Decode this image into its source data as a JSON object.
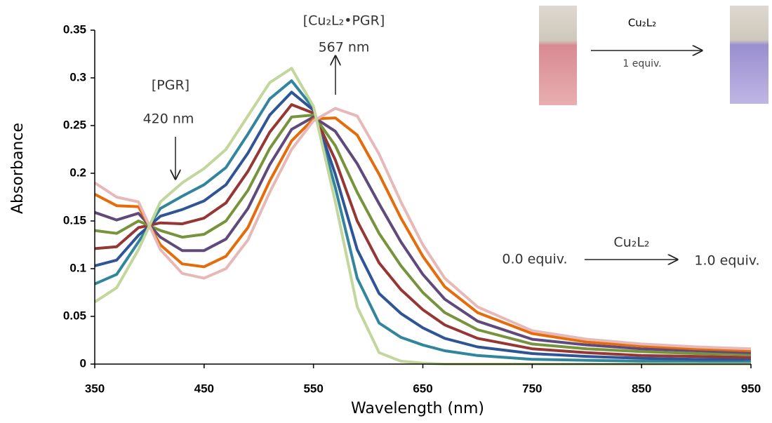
{
  "chart_data": {
    "type": "line",
    "x_label": "Wavelength (nm)",
    "y_label": "Absorbance",
    "x": [
      350,
      370,
      390,
      410,
      430,
      450,
      470,
      490,
      510,
      530,
      550,
      570,
      590,
      610,
      630,
      650,
      670,
      700,
      750,
      800,
      850,
      900,
      950
    ],
    "xlim": [
      350,
      950
    ],
    "xticks": [
      350,
      450,
      550,
      650,
      750,
      850,
      950
    ],
    "ylim": [
      0,
      0.35
    ],
    "yticks": [
      0,
      0.05,
      0.1,
      0.15,
      0.2,
      0.25,
      0.3,
      0.35
    ],
    "grid": false,
    "series": [
      {
        "color": "#31859c",
        "values": [
          0.084,
          0.094,
          0.128,
          0.163,
          0.176,
          0.188,
          0.206,
          0.241,
          0.278,
          0.297,
          0.268,
          0.185,
          0.09,
          0.043,
          0.028,
          0.02,
          0.014,
          0.009,
          0.005,
          0.004,
          0.003,
          0.003,
          0.002
        ]
      },
      {
        "color": "#2f5597",
        "values": [
          0.103,
          0.109,
          0.135,
          0.155,
          0.162,
          0.171,
          0.188,
          0.221,
          0.261,
          0.285,
          0.266,
          0.199,
          0.12,
          0.074,
          0.053,
          0.038,
          0.027,
          0.018,
          0.011,
          0.008,
          0.006,
          0.005,
          0.005
        ]
      },
      {
        "color": "#953735",
        "values": [
          0.121,
          0.123,
          0.143,
          0.148,
          0.147,
          0.153,
          0.169,
          0.202,
          0.243,
          0.272,
          0.263,
          0.214,
          0.15,
          0.106,
          0.078,
          0.057,
          0.041,
          0.027,
          0.016,
          0.012,
          0.009,
          0.008,
          0.007
        ]
      },
      {
        "color": "#77933c",
        "values": [
          0.14,
          0.137,
          0.15,
          0.14,
          0.133,
          0.136,
          0.15,
          0.182,
          0.226,
          0.259,
          0.261,
          0.229,
          0.18,
          0.137,
          0.103,
          0.075,
          0.054,
          0.036,
          0.021,
          0.016,
          0.013,
          0.011,
          0.01
        ]
      },
      {
        "color": "#604a7b",
        "values": [
          0.159,
          0.151,
          0.158,
          0.133,
          0.119,
          0.119,
          0.131,
          0.163,
          0.209,
          0.246,
          0.259,
          0.244,
          0.21,
          0.168,
          0.128,
          0.094,
          0.068,
          0.045,
          0.026,
          0.02,
          0.016,
          0.014,
          0.012
        ]
      },
      {
        "color": "#e46c0a",
        "values": [
          0.178,
          0.166,
          0.165,
          0.125,
          0.105,
          0.102,
          0.113,
          0.143,
          0.192,
          0.234,
          0.257,
          0.258,
          0.24,
          0.199,
          0.153,
          0.113,
          0.081,
          0.054,
          0.032,
          0.023,
          0.019,
          0.016,
          0.014
        ]
      },
      {
        "color": "#e6b9b8",
        "values": [
          0.19,
          0.175,
          0.17,
          0.12,
          0.095,
          0.09,
          0.1,
          0.13,
          0.18,
          0.225,
          0.255,
          0.268,
          0.26,
          0.22,
          0.17,
          0.125,
          0.09,
          0.06,
          0.035,
          0.026,
          0.021,
          0.018,
          0.016
        ]
      },
      {
        "color": "#c3d69b",
        "values": [
          0.065,
          0.08,
          0.12,
          0.17,
          0.19,
          0.205,
          0.225,
          0.26,
          0.295,
          0.31,
          0.27,
          0.17,
          0.06,
          0.012,
          0.003,
          0.001,
          0,
          0,
          0,
          0,
          0,
          0,
          0
        ]
      }
    ],
    "annotations": [
      "[PGR]",
      "420 nm",
      "[Cu₂L₂•PGR]",
      "567 nm",
      "Cu₂L₂",
      "0.0 equiv.",
      "1.0 equiv.",
      "Cu₂L₂",
      "1 equiv."
    ]
  }
}
